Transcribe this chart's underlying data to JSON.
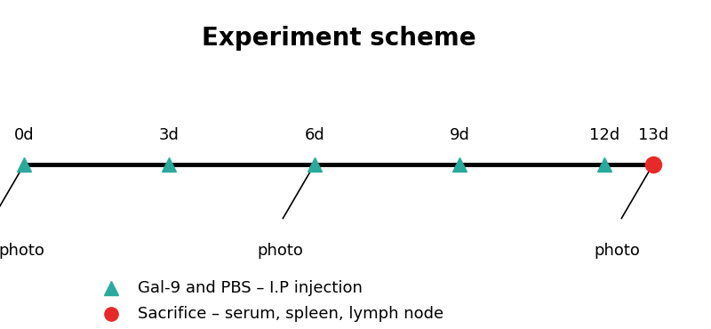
{
  "title": "Experiment scheme",
  "title_fontsize": 20,
  "title_fontweight": "bold",
  "background_color": "#ffffff",
  "triangle_days": [
    0,
    3,
    6,
    9,
    12
  ],
  "triangle_color": "#2aaa9c",
  "circle_day": 13,
  "circle_color": "#e8292a",
  "day_labels": [
    "0d",
    "3d",
    "6d",
    "9d",
    "12d",
    "13d"
  ],
  "day_positions": [
    0,
    3,
    6,
    9,
    12,
    13
  ],
  "photo_label": "photo",
  "photo_fontsize": 13,
  "day_label_fontsize": 13,
  "legend_triangle_label": "Gal-9 and PBS – I.P injection",
  "legend_circle_label": "Sacrifice – serum, spleen, lymph node",
  "legend_fontsize": 13,
  "timeline_x_start": 0,
  "timeline_x_end": 13,
  "x_min": -0.5,
  "x_max": 14.2,
  "y_min": -2.2,
  "y_max": 2.2
}
